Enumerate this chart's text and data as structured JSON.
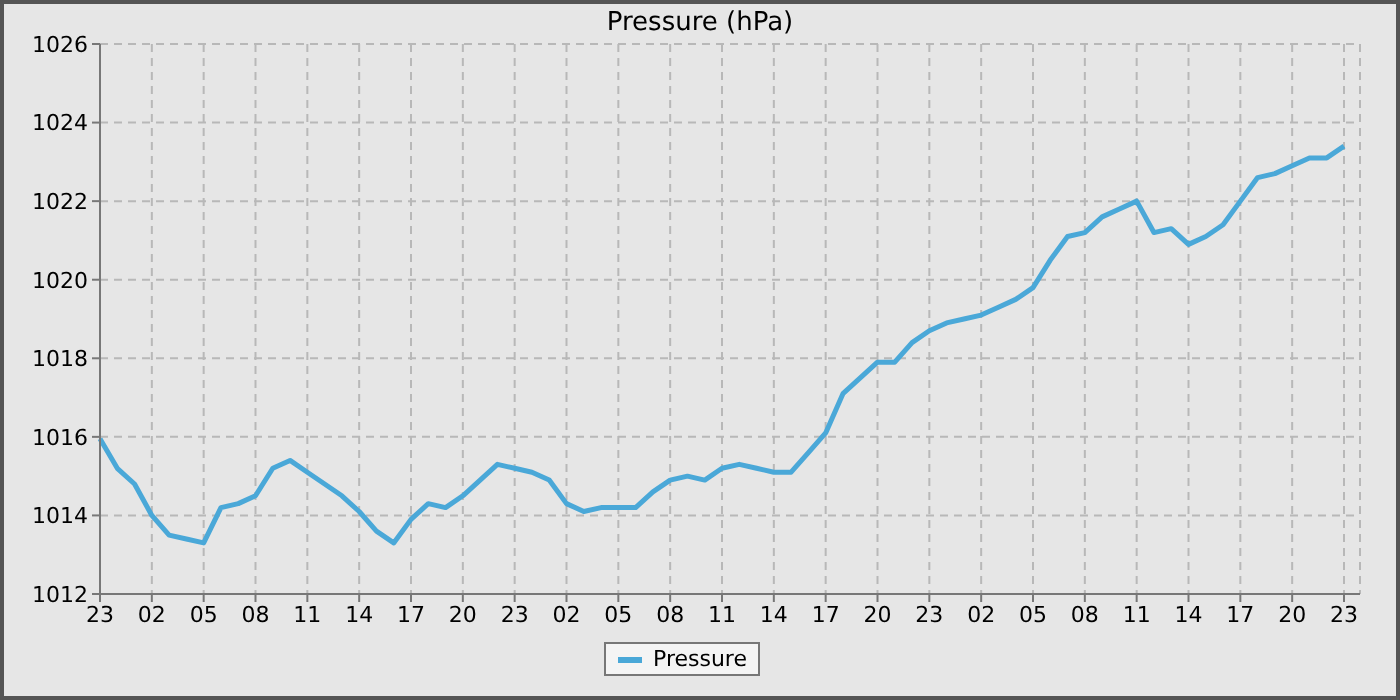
{
  "chart_data": {
    "type": "line",
    "title": "Pressure (hPa)",
    "categories": [
      "23",
      null,
      null,
      "02",
      null,
      null,
      "05",
      null,
      null,
      "08",
      null,
      null,
      "11",
      null,
      null,
      "14",
      null,
      null,
      "17",
      null,
      null,
      "20",
      null,
      null,
      "23",
      null,
      null,
      "02",
      null,
      null,
      "05",
      null,
      null,
      "08",
      null,
      null,
      "11",
      null,
      null,
      "14",
      null,
      null,
      "17",
      null,
      null,
      "20",
      null,
      null,
      "23",
      null,
      null,
      "02",
      null,
      null,
      "05",
      null,
      null,
      "08",
      null,
      null,
      "11",
      null,
      null,
      "14",
      null,
      null,
      "17",
      null,
      null,
      "20",
      null,
      null,
      "23"
    ],
    "series": [
      {
        "name": "Pressure",
        "color": "#4aa8d8",
        "values": [
          1015.95,
          1015.2,
          1014.8,
          1014.0,
          1013.5,
          1013.4,
          1013.3,
          1014.2,
          1014.3,
          1014.5,
          1015.2,
          1015.4,
          1015.1,
          1014.8,
          1014.5,
          1014.1,
          1013.6,
          1013.3,
          1013.9,
          1014.3,
          1014.2,
          1014.5,
          1014.9,
          1015.3,
          1015.2,
          1015.1,
          1014.9,
          1014.3,
          1014.1,
          1014.2,
          1014.2,
          1014.2,
          1014.6,
          1014.9,
          1015.0,
          1014.9,
          1015.2,
          1015.3,
          1015.2,
          1015.1,
          1015.1,
          1015.6,
          1016.1,
          1017.1,
          1017.5,
          1017.9,
          1017.9,
          1018.4,
          1018.7,
          1018.9,
          1019.0,
          1019.1,
          1019.3,
          1019.5,
          1019.8,
          1020.5,
          1021.1,
          1021.2,
          1021.6,
          1021.8,
          1022.0,
          1021.2,
          1021.3,
          1020.9,
          1021.1,
          1021.4,
          1022.0,
          1022.6,
          1022.7,
          1022.9,
          1023.1,
          1023.1,
          1023.4
        ]
      }
    ],
    "ylim": [
      1012,
      1026
    ],
    "yticks": [
      1012,
      1014,
      1016,
      1018,
      1020,
      1022,
      1024,
      1026
    ],
    "grid": true,
    "legend": "bottom",
    "marker": "none",
    "line_style": "solid"
  }
}
